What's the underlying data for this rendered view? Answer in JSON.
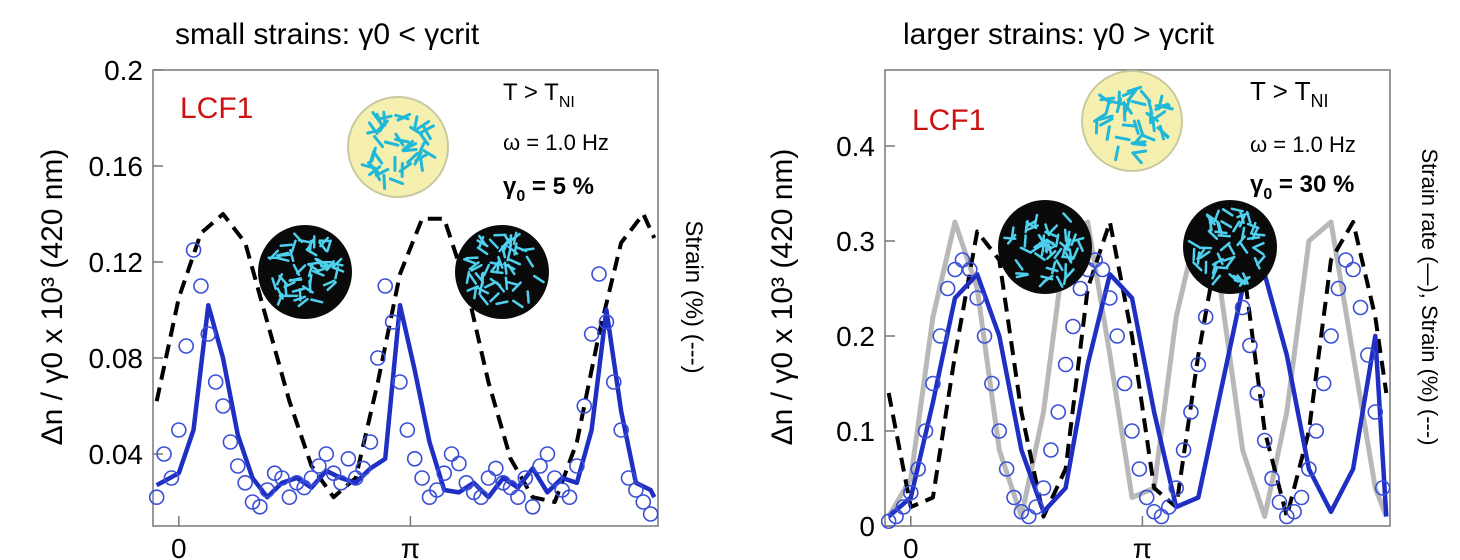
{
  "chart_data": [
    {
      "type": "line",
      "title": "small strains: γ0 < γcrit",
      "ylabel": "Δn / γ0 x 10³ (420 nm)",
      "y2label": "Strain (%) (---)",
      "xlabel": "",
      "ylim": [
        0.01,
        0.2
      ],
      "xlim": [
        -0.35,
        6.5
      ],
      "y_ticks": [
        "0.04",
        "0.08",
        "0.12",
        "0.16",
        "0.2"
      ],
      "y_tick_values": [
        0.04,
        0.08,
        0.12,
        0.16,
        0.2
      ],
      "x_ticks": [
        "0",
        "π"
      ],
      "x_tick_values": [
        0,
        3.1416
      ],
      "grid": false,
      "annotations": {
        "sample": "LCF1",
        "temp": "T > T",
        "temp_sub": "NI",
        "freq": "ω = 1.0 Hz",
        "strain_sym": "γ",
        "strain_sub": "0",
        "strain_val": " = 5 %"
      },
      "colors": {
        "fit": "#1f2fc4",
        "points": "#3a4fd6",
        "strain": "#000000",
        "label": "#cc1111"
      },
      "series": [
        {
          "kind": "strain_dashed",
          "x": [
            -0.3,
            0.0,
            0.3,
            0.6,
            0.9,
            1.2,
            1.5,
            1.8,
            2.1,
            2.4,
            2.7,
            3.0,
            3.3,
            3.6,
            3.9,
            4.2,
            4.5,
            4.8,
            5.1,
            5.4,
            5.7,
            6.0,
            6.3,
            6.45
          ],
          "y": [
            0.062,
            0.105,
            0.132,
            0.14,
            0.128,
            0.095,
            0.062,
            0.035,
            0.022,
            0.03,
            0.07,
            0.115,
            0.138,
            0.138,
            0.11,
            0.07,
            0.038,
            0.022,
            0.02,
            0.045,
            0.09,
            0.128,
            0.14,
            0.13
          ]
        },
        {
          "kind": "fit_solid",
          "x": [
            -0.3,
            0.0,
            0.2,
            0.4,
            0.6,
            0.8,
            1.0,
            1.2,
            1.4,
            1.6,
            1.8,
            2.0,
            2.2,
            2.4,
            2.6,
            2.8,
            3.0,
            3.2,
            3.4,
            3.6,
            3.8,
            4.0,
            4.2,
            4.4,
            4.6,
            4.8,
            5.0,
            5.2,
            5.4,
            5.6,
            5.8,
            6.0,
            6.2,
            6.4,
            6.45
          ],
          "y": [
            0.027,
            0.032,
            0.05,
            0.102,
            0.08,
            0.048,
            0.03,
            0.022,
            0.028,
            0.03,
            0.026,
            0.033,
            0.03,
            0.028,
            0.034,
            0.038,
            0.102,
            0.075,
            0.045,
            0.025,
            0.024,
            0.028,
            0.022,
            0.03,
            0.026,
            0.034,
            0.024,
            0.03,
            0.028,
            0.05,
            0.1,
            0.058,
            0.028,
            0.025,
            0.022
          ]
        },
        {
          "kind": "points",
          "x": [
            -0.3,
            -0.2,
            -0.1,
            0.0,
            0.1,
            0.2,
            0.3,
            0.4,
            0.5,
            0.6,
            0.7,
            0.8,
            0.9,
            1.0,
            1.1,
            1.2,
            1.3,
            1.4,
            1.5,
            1.6,
            1.7,
            1.8,
            1.9,
            2.0,
            2.1,
            2.2,
            2.3,
            2.4,
            2.5,
            2.6,
            2.7,
            2.8,
            2.9,
            3.0,
            3.1,
            3.2,
            3.3,
            3.4,
            3.5,
            3.6,
            3.7,
            3.8,
            3.9,
            4.0,
            4.1,
            4.2,
            4.3,
            4.4,
            4.5,
            4.6,
            4.7,
            4.8,
            4.9,
            5.0,
            5.1,
            5.2,
            5.3,
            5.4,
            5.5,
            5.6,
            5.7,
            5.8,
            5.9,
            6.0,
            6.1,
            6.2,
            6.3,
            6.4
          ],
          "y": [
            0.022,
            0.04,
            0.03,
            0.05,
            0.085,
            0.125,
            0.11,
            0.09,
            0.07,
            0.06,
            0.045,
            0.035,
            0.028,
            0.02,
            0.018,
            0.025,
            0.032,
            0.03,
            0.022,
            0.028,
            0.026,
            0.03,
            0.035,
            0.04,
            0.032,
            0.028,
            0.038,
            0.03,
            0.034,
            0.045,
            0.08,
            0.11,
            0.095,
            0.07,
            0.05,
            0.038,
            0.03,
            0.022,
            0.025,
            0.032,
            0.04,
            0.036,
            0.028,
            0.024,
            0.022,
            0.03,
            0.034,
            0.028,
            0.026,
            0.022,
            0.03,
            0.018,
            0.035,
            0.04,
            0.03,
            0.025,
            0.022,
            0.035,
            0.06,
            0.09,
            0.115,
            0.095,
            0.07,
            0.05,
            0.03,
            0.025,
            0.02,
            0.015
          ]
        }
      ]
    },
    {
      "type": "line",
      "title": "larger strains: γ0 > γcrit",
      "ylabel": "Δn / γ0 x 10³ (420 nm)",
      "y2label": "Strain rate (—), Strain (%) (---)",
      "xlabel": "",
      "ylim": [
        0.0,
        0.48
      ],
      "xlim": [
        -0.35,
        6.5
      ],
      "y_ticks": [
        "0",
        "0.1",
        "0.2",
        "0.3",
        "0.4"
      ],
      "y_tick_values": [
        0,
        0.1,
        0.2,
        0.3,
        0.4
      ],
      "x_ticks": [
        "0",
        "π"
      ],
      "x_tick_values": [
        0,
        3.1416
      ],
      "grid": false,
      "annotations": {
        "sample": "LCF1",
        "temp": "T > T",
        "temp_sub": "NI",
        "freq": "ω = 1.0 Hz",
        "strain_sym": "γ",
        "strain_sub": "0",
        "strain_val": " = 30 %"
      },
      "colors": {
        "fit": "#1f2fc4",
        "points": "#3a4fd6",
        "strain": "#000000",
        "strain_rate": "#b8b8b8",
        "label": "#cc1111"
      },
      "series": [
        {
          "kind": "strain_rate_gray",
          "x": [
            -0.3,
            0.0,
            0.3,
            0.6,
            0.9,
            1.2,
            1.5,
            1.8,
            2.1,
            2.4,
            2.7,
            3.0,
            3.3,
            3.6,
            3.9,
            4.2,
            4.5,
            4.8,
            5.1,
            5.4,
            5.7,
            6.0,
            6.3,
            6.45
          ],
          "y": [
            0.01,
            0.05,
            0.22,
            0.32,
            0.25,
            0.08,
            0.01,
            0.12,
            0.3,
            0.32,
            0.18,
            0.03,
            0.04,
            0.22,
            0.32,
            0.25,
            0.08,
            0.01,
            0.12,
            0.3,
            0.32,
            0.18,
            0.04,
            0.01
          ]
        },
        {
          "kind": "strain_dashed",
          "x": [
            -0.3,
            -0.15,
            0.0,
            0.3,
            0.6,
            0.9,
            1.2,
            1.5,
            1.8,
            2.1,
            2.4,
            2.7,
            3.0,
            3.3,
            3.6,
            3.9,
            4.2,
            4.5,
            4.8,
            5.1,
            5.4,
            5.7,
            6.0,
            6.3,
            6.45
          ],
          "y": [
            0.14,
            0.08,
            0.02,
            0.03,
            0.18,
            0.31,
            0.28,
            0.12,
            0.01,
            0.06,
            0.25,
            0.32,
            0.2,
            0.04,
            0.02,
            0.18,
            0.31,
            0.28,
            0.1,
            0.01,
            0.1,
            0.28,
            0.32,
            0.22,
            0.14
          ]
        },
        {
          "kind": "fit_solid",
          "x": [
            -0.3,
            0.0,
            0.3,
            0.6,
            0.9,
            1.2,
            1.5,
            1.8,
            2.1,
            2.4,
            2.7,
            3.0,
            3.3,
            3.6,
            3.9,
            4.2,
            4.5,
            4.8,
            5.1,
            5.4,
            5.7,
            6.0,
            6.3,
            6.45
          ],
          "y": [
            0.01,
            0.03,
            0.13,
            0.24,
            0.265,
            0.2,
            0.08,
            0.015,
            0.04,
            0.17,
            0.265,
            0.24,
            0.12,
            0.02,
            0.03,
            0.14,
            0.25,
            0.265,
            0.18,
            0.06,
            0.015,
            0.06,
            0.2,
            0.01
          ]
        },
        {
          "kind": "points",
          "x": [
            -0.3,
            -0.2,
            -0.1,
            0.0,
            0.1,
            0.2,
            0.3,
            0.4,
            0.5,
            0.6,
            0.7,
            0.8,
            0.9,
            1.0,
            1.1,
            1.2,
            1.3,
            1.4,
            1.5,
            1.6,
            1.7,
            1.8,
            1.9,
            2.0,
            2.1,
            2.2,
            2.3,
            2.4,
            2.5,
            2.6,
            2.7,
            2.8,
            2.9,
            3.0,
            3.1,
            3.2,
            3.3,
            3.4,
            3.5,
            3.6,
            3.7,
            3.8,
            3.9,
            4.0,
            4.1,
            4.2,
            4.3,
            4.4,
            4.5,
            4.6,
            4.7,
            4.8,
            4.9,
            5.0,
            5.1,
            5.2,
            5.3,
            5.4,
            5.5,
            5.6,
            5.7,
            5.8,
            5.9,
            6.0,
            6.1,
            6.2,
            6.3,
            6.4
          ],
          "y": [
            0.005,
            0.01,
            0.02,
            0.035,
            0.06,
            0.1,
            0.15,
            0.2,
            0.25,
            0.27,
            0.28,
            0.27,
            0.24,
            0.2,
            0.15,
            0.1,
            0.06,
            0.03,
            0.015,
            0.01,
            0.02,
            0.04,
            0.08,
            0.12,
            0.17,
            0.21,
            0.25,
            0.27,
            0.28,
            0.27,
            0.24,
            0.2,
            0.15,
            0.1,
            0.06,
            0.03,
            0.015,
            0.01,
            0.02,
            0.04,
            0.08,
            0.12,
            0.17,
            0.22,
            0.26,
            0.28,
            0.28,
            0.26,
            0.23,
            0.19,
            0.14,
            0.09,
            0.05,
            0.025,
            0.01,
            0.015,
            0.03,
            0.06,
            0.1,
            0.15,
            0.2,
            0.25,
            0.28,
            0.27,
            0.23,
            0.18,
            0.12,
            0.04
          ]
        }
      ]
    }
  ]
}
